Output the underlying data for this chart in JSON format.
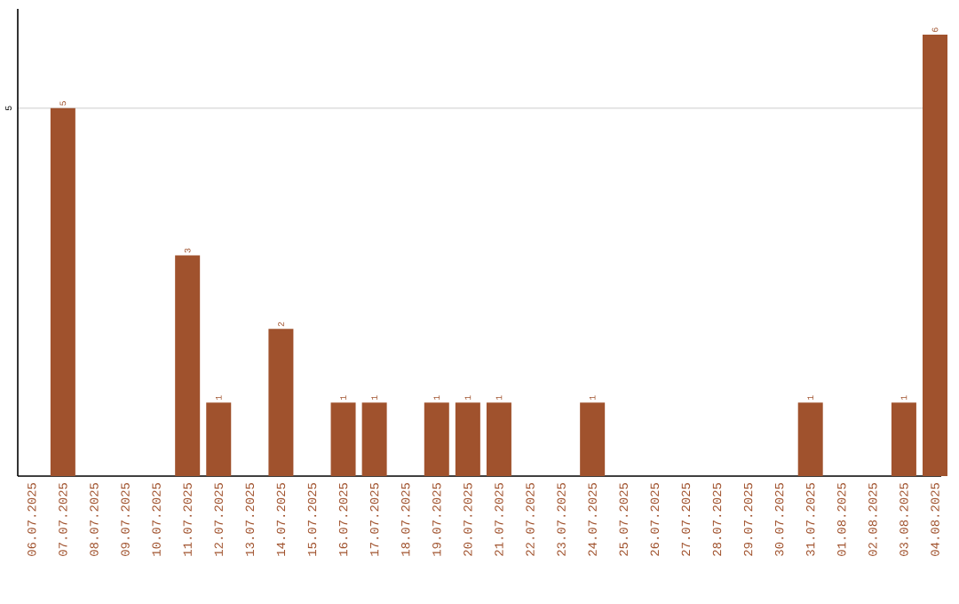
{
  "chart_data": {
    "type": "bar",
    "categories": [
      "06.07.2025",
      "07.07.2025",
      "08.07.2025",
      "09.07.2025",
      "10.07.2025",
      "11.07.2025",
      "12.07.2025",
      "13.07.2025",
      "14.07.2025",
      "15.07.2025",
      "16.07.2025",
      "17.07.2025",
      "18.07.2025",
      "19.07.2025",
      "20.07.2025",
      "21.07.2025",
      "22.07.2025",
      "23.07.2025",
      "24.07.2025",
      "25.07.2025",
      "26.07.2025",
      "27.07.2025",
      "28.07.2025",
      "29.07.2025",
      "30.07.2025",
      "31.07.2025",
      "01.08.2025",
      "02.08.2025",
      "03.08.2025",
      "04.08.2025"
    ],
    "values": [
      0,
      5,
      0,
      0,
      0,
      3,
      1,
      0,
      2,
      0,
      1,
      1,
      0,
      1,
      1,
      1,
      0,
      0,
      1,
      0,
      0,
      0,
      0,
      0,
      0,
      1,
      0,
      0,
      1,
      6
    ],
    "value_labels": [
      null,
      "5",
      null,
      null,
      null,
      "3",
      "1",
      null,
      "2",
      null,
      "1",
      "1",
      null,
      "1",
      "1",
      "1",
      null,
      null,
      "1",
      null,
      null,
      null,
      null,
      null,
      null,
      "1",
      null,
      null,
      "1",
      "6"
    ],
    "color": "#a0522d",
    "ylim": [
      0,
      6.35
    ],
    "yticks": [
      5
    ],
    "grid": "y"
  }
}
